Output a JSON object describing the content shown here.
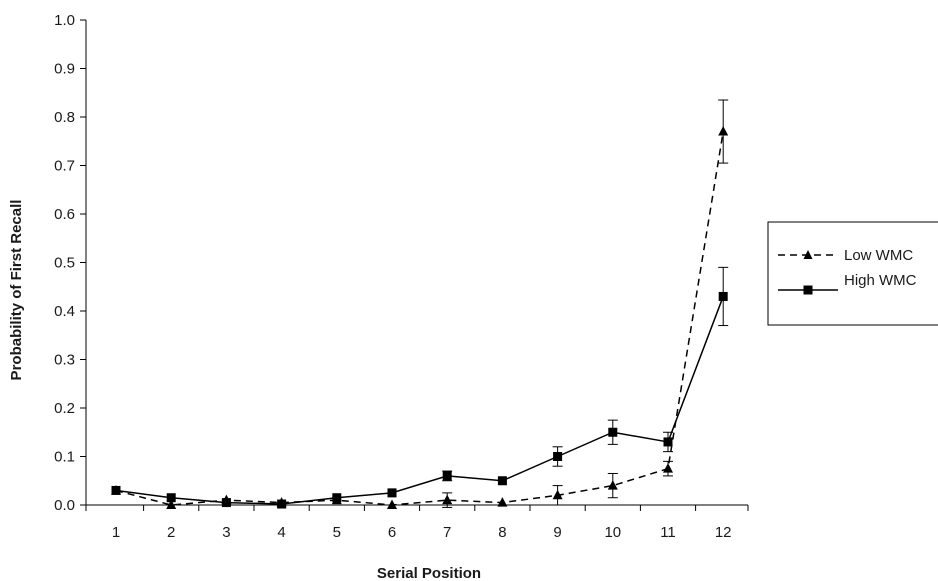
{
  "chart_data": {
    "type": "line",
    "xlabel": "Serial Position",
    "ylabel": "Probability of First Recall",
    "x": [
      1,
      2,
      3,
      4,
      5,
      6,
      7,
      8,
      9,
      10,
      11,
      12
    ],
    "x_tick_labels": [
      "1",
      "2",
      "3",
      "4",
      "5",
      "6",
      "7",
      "8",
      "9",
      "10",
      "11",
      "12"
    ],
    "ylim": [
      0,
      1
    ],
    "y_ticks": [
      0.0,
      0.1,
      0.2,
      0.3,
      0.4,
      0.5,
      0.6,
      0.7,
      0.8,
      0.9,
      1.0
    ],
    "y_tick_labels": [
      "0.0",
      "0.1",
      "0.2",
      "0.3",
      "0.4",
      "0.5",
      "0.6",
      "0.7",
      "0.8",
      "0.9",
      "1.0"
    ],
    "grid": false,
    "legend_position": "right",
    "series": [
      {
        "name": "Low WMC",
        "line_style": "dashed",
        "marker": "triangle",
        "color": "#000000",
        "values": [
          0.03,
          0.0,
          0.01,
          0.005,
          0.01,
          0.0,
          0.01,
          0.005,
          0.02,
          0.04,
          0.075,
          0.77
        ],
        "errors": [
          0.0,
          0.0,
          0.0,
          0.0,
          0.0,
          0.0,
          0.015,
          0.0,
          0.02,
          0.025,
          0.015,
          0.065
        ]
      },
      {
        "name": "High WMC",
        "line_style": "solid",
        "marker": "square",
        "color": "#000000",
        "values": [
          0.03,
          0.015,
          0.005,
          0.002,
          0.015,
          0.025,
          0.06,
          0.05,
          0.1,
          0.15,
          0.13,
          0.43
        ],
        "errors": [
          0.0,
          0.0,
          0.0,
          0.0,
          0.0,
          0.0,
          0.01,
          0.0,
          0.02,
          0.025,
          0.02,
          0.06
        ]
      }
    ]
  }
}
